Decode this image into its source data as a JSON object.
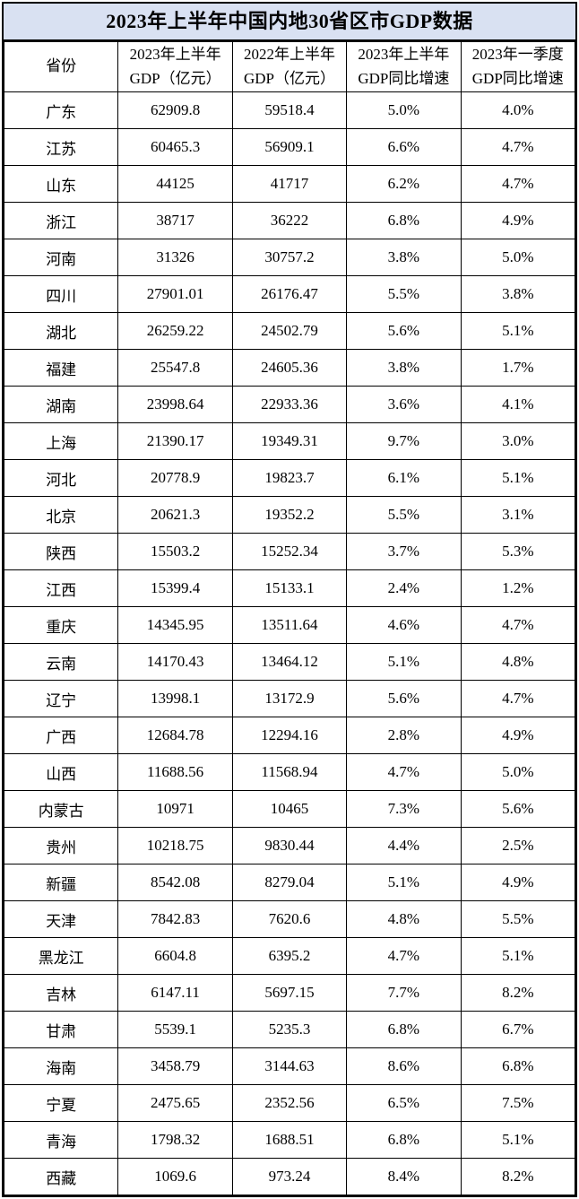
{
  "chart_data": {
    "type": "table",
    "title": "2023年上半年中国内地30省区市GDP数据",
    "columns": [
      "省份",
      "2023年上半年\nGDP（亿元）",
      "2022年上半年\nGDP（亿元）",
      "2023年上半年\nGDP同比增速",
      "2023年一季度\nGDP同比增速"
    ],
    "rows": [
      [
        "广东",
        "62909.8",
        "59518.4",
        "5.0%",
        "4.0%"
      ],
      [
        "江苏",
        "60465.3",
        "56909.1",
        "6.6%",
        "4.7%"
      ],
      [
        "山东",
        "44125",
        "41717",
        "6.2%",
        "4.7%"
      ],
      [
        "浙江",
        "38717",
        "36222",
        "6.8%",
        "4.9%"
      ],
      [
        "河南",
        "31326",
        "30757.2",
        "3.8%",
        "5.0%"
      ],
      [
        "四川",
        "27901.01",
        "26176.47",
        "5.5%",
        "3.8%"
      ],
      [
        "湖北",
        "26259.22",
        "24502.79",
        "5.6%",
        "5.1%"
      ],
      [
        "福建",
        "25547.8",
        "24605.36",
        "3.8%",
        "1.7%"
      ],
      [
        "湖南",
        "23998.64",
        "22933.36",
        "3.6%",
        "4.1%"
      ],
      [
        "上海",
        "21390.17",
        "19349.31",
        "9.7%",
        "3.0%"
      ],
      [
        "河北",
        "20778.9",
        "19823.7",
        "6.1%",
        "5.1%"
      ],
      [
        "北京",
        "20621.3",
        "19352.2",
        "5.5%",
        "3.1%"
      ],
      [
        "陕西",
        "15503.2",
        "15252.34",
        "3.7%",
        "5.3%"
      ],
      [
        "江西",
        "15399.4",
        "15133.1",
        "2.4%",
        "1.2%"
      ],
      [
        "重庆",
        "14345.95",
        "13511.64",
        "4.6%",
        "4.7%"
      ],
      [
        "云南",
        "14170.43",
        "13464.12",
        "5.1%",
        "4.8%"
      ],
      [
        "辽宁",
        "13998.1",
        "13172.9",
        "5.6%",
        "4.7%"
      ],
      [
        "广西",
        "12684.78",
        "12294.16",
        "2.8%",
        "4.9%"
      ],
      [
        "山西",
        "11688.56",
        "11568.94",
        "4.7%",
        "5.0%"
      ],
      [
        "内蒙古",
        "10971",
        "10465",
        "7.3%",
        "5.6%"
      ],
      [
        "贵州",
        "10218.75",
        "9830.44",
        "4.4%",
        "2.5%"
      ],
      [
        "新疆",
        "8542.08",
        "8279.04",
        "5.1%",
        "4.9%"
      ],
      [
        "天津",
        "7842.83",
        "7620.6",
        "4.8%",
        "5.5%"
      ],
      [
        "黑龙江",
        "6604.8",
        "6395.2",
        "4.7%",
        "5.1%"
      ],
      [
        "吉林",
        "6147.11",
        "5697.15",
        "7.7%",
        "8.2%"
      ],
      [
        "甘肃",
        "5539.1",
        "5235.3",
        "6.8%",
        "6.7%"
      ],
      [
        "海南",
        "3458.79",
        "3144.63",
        "8.6%",
        "6.8%"
      ],
      [
        "宁夏",
        "2475.65",
        "2352.56",
        "6.5%",
        "7.5%"
      ],
      [
        "青海",
        "1798.32",
        "1688.51",
        "6.8%",
        "5.1%"
      ],
      [
        "西藏",
        "1069.6",
        "973.24",
        "8.4%",
        "8.2%"
      ]
    ]
  },
  "colors": {
    "title_background": "#D9E1F2",
    "border": "#000000",
    "text": "#000000"
  }
}
